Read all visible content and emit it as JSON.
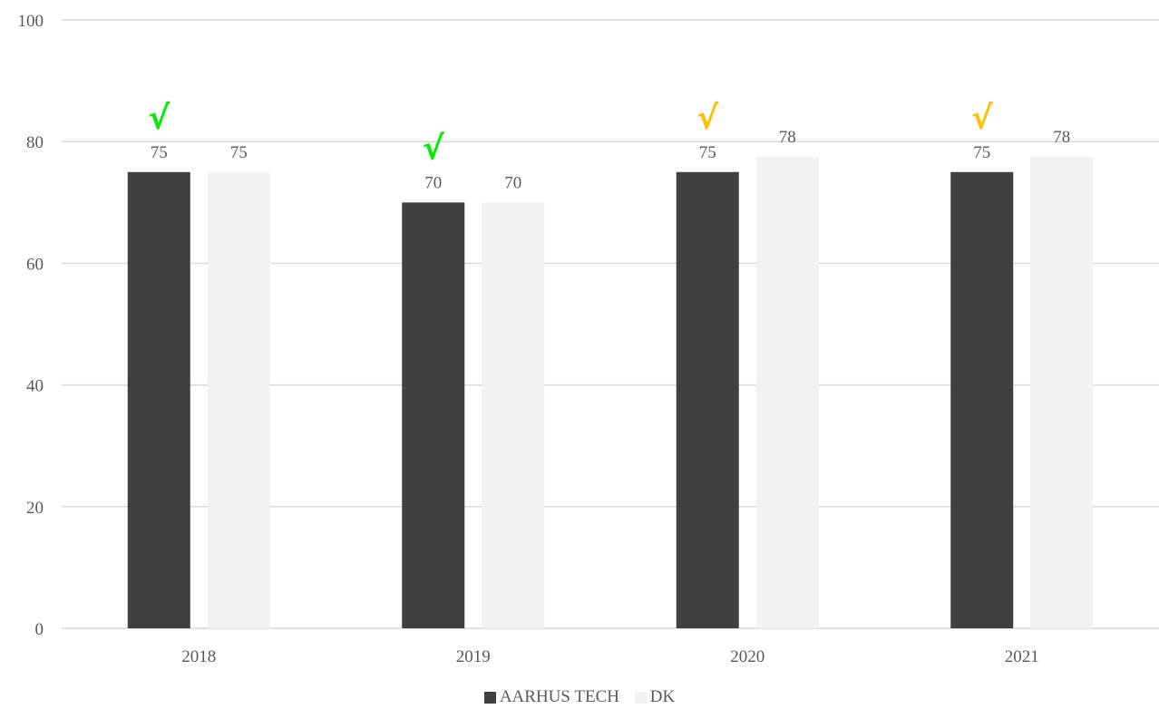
{
  "chart_data": {
    "type": "bar",
    "categories": [
      "2018",
      "2019",
      "2020",
      "2021"
    ],
    "series": [
      {
        "name": "AARHUS TECH",
        "values": [
          75,
          70,
          75,
          75
        ],
        "labels": [
          "75",
          "70",
          "75",
          "75"
        ],
        "color": "#404040"
      },
      {
        "name": "DK",
        "values": [
          75,
          70,
          77.5,
          77.5
        ],
        "labels": [
          "75",
          "70",
          "78",
          "78"
        ],
        "color": "#f2f2f2"
      }
    ],
    "markers": [
      {
        "category": "2018",
        "symbol": "√",
        "color": "#00ee00"
      },
      {
        "category": "2019",
        "symbol": "√",
        "color": "#00ee00"
      },
      {
        "category": "2020",
        "symbol": "√",
        "color": "#ffc000"
      },
      {
        "category": "2021",
        "symbol": "√",
        "color": "#ffc000"
      }
    ],
    "ylim": [
      0,
      100
    ],
    "yticks": [
      "0",
      "20",
      "40",
      "60",
      "80",
      "100"
    ],
    "grid": true,
    "legend_position": "bottom",
    "gridline_color": "#d9d9d9",
    "text_color": "#595959"
  }
}
